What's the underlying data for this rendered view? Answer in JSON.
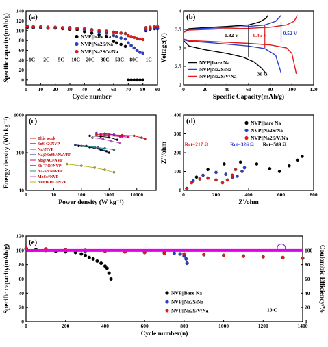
{
  "chart_data": [
    {
      "panel": "(a)",
      "type": "scatter",
      "xlabel": "Cycle number",
      "ylabel": "Specific capacity(mAh/g)",
      "xlim": [
        0,
        90
      ],
      "ylim": [
        -10,
        140
      ],
      "xticks": [
        0,
        10,
        20,
        30,
        40,
        50,
        60,
        70,
        80,
        90
      ],
      "yticks": [
        0,
        20,
        40,
        60,
        80,
        100,
        120,
        140
      ],
      "rate_labels": [
        "1C",
        "2C",
        "5C",
        "10C",
        "20C",
        "30C",
        "50C",
        "80C",
        "1C"
      ],
      "rate_label_x": [
        4,
        14,
        24,
        34,
        44,
        54,
        64,
        74,
        84
      ],
      "series": [
        {
          "name": "NVP||bare Na",
          "color": "#000000",
          "x": [
            1,
            5,
            10,
            15,
            20,
            25,
            30,
            35,
            40,
            45,
            50,
            55,
            60,
            62,
            65,
            68,
            70,
            72,
            74,
            76,
            78,
            80,
            82,
            85,
            88,
            90
          ],
          "y": [
            107,
            106,
            106,
            105,
            105,
            104,
            103,
            102,
            98,
            95,
            92,
            88,
            78,
            75,
            72,
            68,
            0,
            0,
            0,
            0,
            0,
            0,
            100,
            103,
            104,
            104
          ]
        },
        {
          "name": "NVP||Na2S/Na",
          "color": "#2e3ec8",
          "x": [
            1,
            5,
            10,
            15,
            20,
            25,
            30,
            35,
            40,
            45,
            50,
            55,
            60,
            62,
            65,
            68,
            70,
            72,
            74,
            76,
            78,
            80,
            82,
            85,
            88,
            90
          ],
          "y": [
            108,
            107,
            107,
            106,
            106,
            105,
            104,
            104,
            102,
            100,
            97,
            95,
            90,
            88,
            85,
            83,
            75,
            70,
            65,
            60,
            56,
            54,
            102,
            104,
            105,
            105
          ]
        },
        {
          "name": "NVP||Na2S/V/Na",
          "color": "#e01b1b",
          "x": [
            1,
            5,
            10,
            15,
            20,
            25,
            30,
            35,
            40,
            45,
            50,
            55,
            60,
            62,
            65,
            68,
            70,
            72,
            74,
            76,
            78,
            80,
            82,
            85,
            88,
            90
          ],
          "y": [
            109,
            108,
            108,
            107,
            107,
            106,
            106,
            105,
            104,
            102,
            100,
            99,
            97,
            96,
            95,
            94,
            90,
            88,
            86,
            84,
            83,
            82,
            106,
            107,
            108,
            108
          ]
        }
      ]
    },
    {
      "panel": "(b)",
      "type": "line",
      "xlabel": "Specific Capacity(mAh/g)",
      "ylabel": "Voltage(V)",
      "xlim": [
        0,
        120
      ],
      "ylim": [
        2.0,
        4.0
      ],
      "xticks": [
        0,
        20,
        40,
        60,
        80,
        100,
        120
      ],
      "yticks": [
        2.0,
        2.5,
        3.0,
        3.5,
        4.0
      ],
      "annotations": [
        "0.82 V",
        "0.45 V",
        "0.52 V",
        "30 C"
      ],
      "series": [
        {
          "name": "NVP||bare Na",
          "color": "#000000",
          "charge": [
            [
              0,
              3.42
            ],
            [
              5,
              3.52
            ],
            [
              20,
              3.55
            ],
            [
              40,
              3.58
            ],
            [
              60,
              3.62
            ],
            [
              70,
              3.7
            ],
            [
              76,
              3.8
            ],
            [
              78,
              3.88
            ]
          ],
          "discharge": [
            [
              0,
              3.2
            ],
            [
              5,
              3.05
            ],
            [
              20,
              2.95
            ],
            [
              40,
              2.85
            ],
            [
              55,
              2.75
            ],
            [
              65,
              2.62
            ],
            [
              72,
              2.45
            ],
            [
              77,
              2.28
            ]
          ]
        },
        {
          "name": "NVP||Na2S/Na",
          "color": "#2e3ec8",
          "charge": [
            [
              0,
              3.42
            ],
            [
              5,
              3.5
            ],
            [
              20,
              3.53
            ],
            [
              40,
              3.55
            ],
            [
              60,
              3.58
            ],
            [
              75,
              3.62
            ],
            [
              85,
              3.72
            ],
            [
              90,
              3.88
            ]
          ],
          "discharge": [
            [
              0,
              3.22
            ],
            [
              5,
              3.18
            ],
            [
              20,
              3.15
            ],
            [
              40,
              3.1
            ],
            [
              60,
              3.05
            ],
            [
              75,
              2.98
            ],
            [
              85,
              2.8
            ],
            [
              90,
              2.32
            ]
          ]
        },
        {
          "name": "NVP||Na2S/V/Na",
          "color": "#e01b1b",
          "charge": [
            [
              0,
              3.42
            ],
            [
              5,
              3.48
            ],
            [
              20,
              3.5
            ],
            [
              40,
              3.52
            ],
            [
              60,
              3.53
            ],
            [
              80,
              3.56
            ],
            [
              95,
              3.62
            ],
            [
              102,
              3.72
            ],
            [
              105,
              3.88
            ]
          ],
          "discharge": [
            [
              0,
              3.24
            ],
            [
              5,
              3.2
            ],
            [
              20,
              3.18
            ],
            [
              40,
              3.15
            ],
            [
              60,
              3.12
            ],
            [
              80,
              3.08
            ],
            [
              95,
              3.0
            ],
            [
              100,
              2.85
            ],
            [
              104,
              2.3
            ]
          ]
        }
      ]
    },
    {
      "panel": "(c)",
      "type": "line",
      "xscale": "log",
      "xlabel": "Power density (W kg⁻¹)",
      "ylabel": "Energy density (Wh kg⁻¹)",
      "xlim": [
        1,
        50000
      ],
      "ylim": [
        10,
        1000
      ],
      "xticks": [
        1,
        10,
        100,
        1000,
        10000
      ],
      "xtick_labels": [
        "1",
        "10",
        "100",
        "1000",
        "10000"
      ],
      "yticks": [
        10,
        100,
        1000
      ],
      "ytick_labels": [
        "10",
        "100",
        "1000"
      ],
      "series": [
        {
          "name": "This work",
          "color": "#e01b1b",
          "points": [
            [
              350,
              300
            ],
            [
              1000,
              300
            ],
            [
              3000,
              290
            ],
            [
              8000,
              280
            ],
            [
              15000,
              250
            ],
            [
              20000,
              230
            ]
          ]
        },
        {
          "name": "SnS-G//NVP",
          "color": "#000000",
          "points": [
            [
              200,
              280
            ],
            [
              500,
              270
            ],
            [
              1000,
              255
            ],
            [
              2000,
              220
            ]
          ]
        },
        {
          "name": "Na//NVP",
          "color": "#7b2fbe",
          "points": [
            [
              350,
              330
            ],
            [
              700,
              320
            ],
            [
              1500,
              300
            ],
            [
              3000,
              270
            ]
          ]
        },
        {
          "name": "Na@SnSb//NaVPF",
          "color": "#1f2a8c",
          "points": [
            [
              60,
              160
            ],
            [
              150,
              150
            ],
            [
              400,
              135
            ],
            [
              800,
              110
            ]
          ]
        },
        {
          "name": "Sb@NC//NVP",
          "color": "#e6007e",
          "points": [
            [
              500,
              300
            ],
            [
              1000,
              280
            ],
            [
              2500,
              270
            ],
            [
              5000,
              260
            ]
          ]
        },
        {
          "name": "Sb-TiO//NVP",
          "color": "#000000",
          "points": [
            [
              80,
              150
            ],
            [
              200,
              140
            ],
            [
              500,
              120
            ],
            [
              1000,
              100
            ]
          ]
        },
        {
          "name": "Na-Sb/NaVPF",
          "color": "#2a8c8c",
          "points": [
            [
              100,
              150
            ],
            [
              300,
              140
            ],
            [
              700,
              130
            ],
            [
              1500,
              120
            ]
          ]
        },
        {
          "name": "MoSe//NVP",
          "color": "#c052c0",
          "points": [
            [
              250,
              250
            ],
            [
              600,
              230
            ],
            [
              1200,
              200
            ],
            [
              2500,
              180
            ]
          ]
        },
        {
          "name": "NOHPHC//NVP",
          "color": "#b5b51a",
          "points": [
            [
              30,
              50
            ],
            [
              100,
              45
            ],
            [
              300,
              40
            ],
            [
              700,
              35
            ],
            [
              1500,
              30
            ]
          ]
        }
      ]
    },
    {
      "panel": "(d)",
      "type": "scatter",
      "xlabel": "Z'/ohm",
      "ylabel": "Z''/ohm",
      "xlim": [
        0,
        800
      ],
      "ylim": [
        0,
        400
      ],
      "xticks": [
        0,
        200,
        400,
        600,
        800
      ],
      "yticks": [
        0,
        100,
        200,
        300,
        400
      ],
      "annotations": [
        "Rct=217 Ω",
        "Rct=326 Ω",
        "Rct=589 Ω"
      ],
      "series": [
        {
          "name": "NVP||bare Na",
          "color": "#000000",
          "points": [
            [
              20,
              10
            ],
            [
              80,
              70
            ],
            [
              150,
              110
            ],
            [
              250,
              140
            ],
            [
              350,
              150
            ],
            [
              450,
              140
            ],
            [
              530,
              115
            ],
            [
              590,
              100
            ],
            [
              650,
              130
            ],
            [
              700,
              160
            ],
            [
              730,
              180
            ]
          ]
        },
        {
          "name": "NVP||Na2S/Na",
          "color": "#2e3ec8",
          "points": [
            [
              20,
              10
            ],
            [
              60,
              50
            ],
            [
              120,
              80
            ],
            [
              200,
              95
            ],
            [
              260,
              85
            ],
            [
              300,
              70
            ],
            [
              330,
              75
            ],
            [
              360,
              100
            ],
            [
              375,
              120
            ]
          ]
        },
        {
          "name": "NVP||Na2S/V/Na",
          "color": "#e01b1b",
          "points": [
            [
              20,
              10
            ],
            [
              50,
              40
            ],
            [
              100,
              60
            ],
            [
              150,
              65
            ],
            [
              200,
              55
            ],
            [
              240,
              40
            ],
            [
              270,
              55
            ],
            [
              300,
              80
            ],
            [
              320,
              110
            ]
          ]
        }
      ]
    },
    {
      "panel": "(e)",
      "type": "scatter",
      "xlabel": "Cycle number(n)",
      "ylabel": "Specific capacity(mAh/g)",
      "ylabel_right": "Coulombic Efficiency/%",
      "xlim": [
        0,
        1400
      ],
      "ylim": [
        0,
        120
      ],
      "xticks": [
        0,
        200,
        400,
        600,
        800,
        1000,
        1200,
        1400
      ],
      "yticks": [
        0,
        20,
        40,
        60,
        80,
        100,
        120
      ],
      "yticks_right": [
        0,
        20,
        40,
        60,
        80,
        100
      ],
      "annotation": "10 C",
      "series": [
        {
          "name": "NVP||Bare Na",
          "color": "#000000",
          "x": [
            1,
            50,
            100,
            150,
            200,
            250,
            280,
            300,
            320,
            340,
            360,
            380,
            400,
            410,
            420,
            430
          ],
          "y": [
            102,
            101,
            100,
            99,
            98,
            97,
            95,
            93,
            90,
            88,
            85,
            82,
            78,
            75,
            68,
            60
          ]
        },
        {
          "name": "NVP||Na2S/Na",
          "color": "#2e3ec8",
          "x": [
            1,
            100,
            200,
            300,
            400,
            500,
            600,
            700,
            750,
            780,
            800,
            810,
            815
          ],
          "y": [
            102,
            101,
            100,
            99,
            99,
            98,
            98,
            97,
            96,
            95,
            92,
            88,
            82
          ]
        },
        {
          "name": "NVP||Na2S/V/Na",
          "color": "#e01b1b",
          "x": [
            1,
            100,
            200,
            300,
            400,
            500,
            600,
            700,
            800,
            900,
            1000,
            1100,
            1200,
            1300,
            1400
          ],
          "y": [
            103,
            102,
            101,
            100,
            99,
            98,
            97,
            96,
            95,
            94,
            93,
            92,
            91,
            90,
            89
          ]
        },
        {
          "name": "Coulombic Efficiency",
          "color": "#e600e6",
          "axis": "right",
          "x": [
            1,
            200,
            400,
            600,
            800,
            1000,
            1200,
            1400
          ],
          "y": [
            99.8,
            99.9,
            99.9,
            99.9,
            99.9,
            99.9,
            99.9,
            99.9
          ]
        }
      ]
    }
  ]
}
